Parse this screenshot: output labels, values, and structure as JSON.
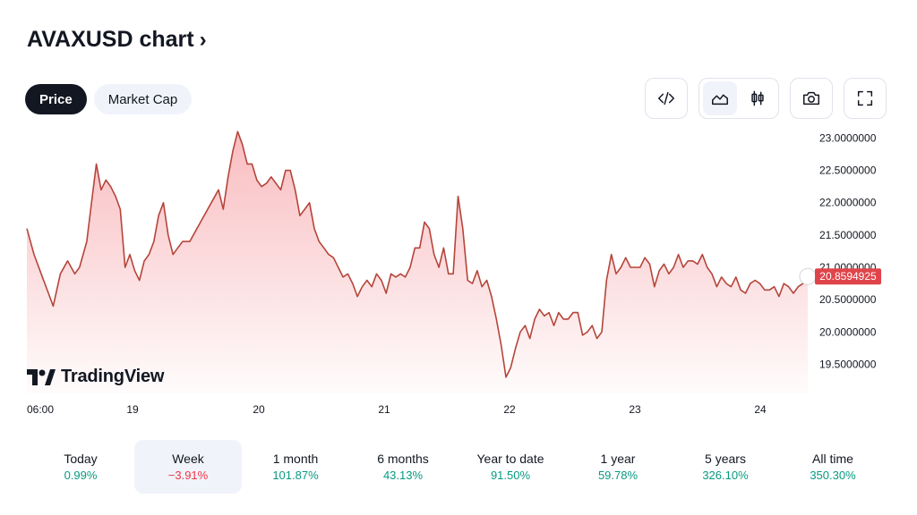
{
  "header": {
    "title": "AVAXUSD chart",
    "chevron": "›"
  },
  "tabs": [
    {
      "label": "Price",
      "active": true
    },
    {
      "label": "Market Cap",
      "active": false
    }
  ],
  "toolbar": {
    "embed_icon": "code-icon",
    "area_chart_icon": "area-chart-icon",
    "candle_icon": "candlestick-icon",
    "screenshot_icon": "camera-icon",
    "fullscreen_icon": "fullscreen-icon"
  },
  "branding": {
    "logo_text": "TradingView"
  },
  "colors": {
    "line": "#b5453a",
    "fill_top": "#f7a6ab",
    "label_bg": "#e0444b",
    "positive": "#089981",
    "negative": "#f23645"
  },
  "chart_data": {
    "type": "area",
    "symbol": "AVAXUSD",
    "x_ticks": [
      "06:00",
      "19",
      "20",
      "21",
      "22",
      "23",
      "24"
    ],
    "y_ticks": [
      "23.0000000",
      "22.5000000",
      "22.0000000",
      "21.5000000",
      "21.0000000",
      "20.5000000",
      "20.0000000",
      "19.5000000"
    ],
    "ylim": [
      19.05,
      23.2
    ],
    "last_price": "20.8594925",
    "last_value": 20.8594925,
    "series_points": [
      [
        0.0,
        21.6
      ],
      [
        0.15,
        21.2
      ],
      [
        0.3,
        20.9
      ],
      [
        0.45,
        20.6
      ],
      [
        0.55,
        20.4
      ],
      [
        0.7,
        20.9
      ],
      [
        0.85,
        21.1
      ],
      [
        1.0,
        20.9
      ],
      [
        1.1,
        21.0
      ],
      [
        1.25,
        21.4
      ],
      [
        1.35,
        22.0
      ],
      [
        1.45,
        22.6
      ],
      [
        1.55,
        22.2
      ],
      [
        1.65,
        22.35
      ],
      [
        1.75,
        22.25
      ],
      [
        1.85,
        22.1
      ],
      [
        1.95,
        21.9
      ],
      [
        2.05,
        21.0
      ],
      [
        2.15,
        21.2
      ],
      [
        2.25,
        20.95
      ],
      [
        2.35,
        20.8
      ],
      [
        2.45,
        21.1
      ],
      [
        2.55,
        21.2
      ],
      [
        2.65,
        21.4
      ],
      [
        2.75,
        21.8
      ],
      [
        2.85,
        22.0
      ],
      [
        2.95,
        21.5
      ],
      [
        3.05,
        21.2
      ],
      [
        3.15,
        21.3
      ],
      [
        3.25,
        21.4
      ],
      [
        3.4,
        21.4
      ],
      [
        3.55,
        21.6
      ],
      [
        3.7,
        21.8
      ],
      [
        3.85,
        22.0
      ],
      [
        4.0,
        22.2
      ],
      [
        4.1,
        21.9
      ],
      [
        4.2,
        22.4
      ],
      [
        4.3,
        22.8
      ],
      [
        4.4,
        23.1
      ],
      [
        4.5,
        22.9
      ],
      [
        4.6,
        22.6
      ],
      [
        4.7,
        22.6
      ],
      [
        4.8,
        22.35
      ],
      [
        4.9,
        22.25
      ],
      [
        5.0,
        22.3
      ],
      [
        5.1,
        22.4
      ],
      [
        5.2,
        22.3
      ],
      [
        5.3,
        22.2
      ],
      [
        5.4,
        22.5
      ],
      [
        5.5,
        22.5
      ],
      [
        5.6,
        22.2
      ],
      [
        5.7,
        21.8
      ],
      [
        5.8,
        21.9
      ],
      [
        5.9,
        22.0
      ],
      [
        6.0,
        21.6
      ],
      [
        6.1,
        21.4
      ],
      [
        6.2,
        21.3
      ],
      [
        6.3,
        21.2
      ],
      [
        6.4,
        21.15
      ],
      [
        6.5,
        21.0
      ],
      [
        6.6,
        20.85
      ],
      [
        6.7,
        20.9
      ],
      [
        6.8,
        20.75
      ],
      [
        6.9,
        20.55
      ],
      [
        7.0,
        20.7
      ],
      [
        7.1,
        20.8
      ],
      [
        7.2,
        20.7
      ],
      [
        7.3,
        20.9
      ],
      [
        7.4,
        20.8
      ],
      [
        7.5,
        20.6
      ],
      [
        7.6,
        20.9
      ],
      [
        7.7,
        20.85
      ],
      [
        7.8,
        20.9
      ],
      [
        7.9,
        20.85
      ],
      [
        8.0,
        21.0
      ],
      [
        8.1,
        21.3
      ],
      [
        8.2,
        21.3
      ],
      [
        8.3,
        21.7
      ],
      [
        8.4,
        21.6
      ],
      [
        8.5,
        21.2
      ],
      [
        8.6,
        21.0
      ],
      [
        8.7,
        21.3
      ],
      [
        8.8,
        20.9
      ],
      [
        8.9,
        20.9
      ],
      [
        9.0,
        22.1
      ],
      [
        9.1,
        21.6
      ],
      [
        9.2,
        20.8
      ],
      [
        9.3,
        20.75
      ],
      [
        9.4,
        20.95
      ],
      [
        9.5,
        20.7
      ],
      [
        9.6,
        20.8
      ],
      [
        9.7,
        20.55
      ],
      [
        9.8,
        20.2
      ],
      [
        9.9,
        19.8
      ],
      [
        10.0,
        19.3
      ],
      [
        10.1,
        19.45
      ],
      [
        10.2,
        19.75
      ],
      [
        10.3,
        20.0
      ],
      [
        10.4,
        20.1
      ],
      [
        10.5,
        19.9
      ],
      [
        10.6,
        20.2
      ],
      [
        10.7,
        20.35
      ],
      [
        10.8,
        20.25
      ],
      [
        10.9,
        20.3
      ],
      [
        11.0,
        20.1
      ],
      [
        11.1,
        20.3
      ],
      [
        11.2,
        20.2
      ],
      [
        11.3,
        20.2
      ],
      [
        11.4,
        20.3
      ],
      [
        11.5,
        20.3
      ],
      [
        11.6,
        19.95
      ],
      [
        11.7,
        20.0
      ],
      [
        11.8,
        20.1
      ],
      [
        11.9,
        19.9
      ],
      [
        12.0,
        20.0
      ],
      [
        12.1,
        20.8
      ],
      [
        12.2,
        21.2
      ],
      [
        12.3,
        20.9
      ],
      [
        12.4,
        21.0
      ],
      [
        12.5,
        21.15
      ],
      [
        12.6,
        21.0
      ],
      [
        12.7,
        21.0
      ],
      [
        12.8,
        21.0
      ],
      [
        12.9,
        21.15
      ],
      [
        13.0,
        21.05
      ],
      [
        13.1,
        20.7
      ],
      [
        13.2,
        20.95
      ],
      [
        13.3,
        21.05
      ],
      [
        13.4,
        20.9
      ],
      [
        13.5,
        21.0
      ],
      [
        13.6,
        21.2
      ],
      [
        13.7,
        21.0
      ],
      [
        13.8,
        21.1
      ],
      [
        13.9,
        21.1
      ],
      [
        14.0,
        21.05
      ],
      [
        14.1,
        21.2
      ],
      [
        14.2,
        21.0
      ],
      [
        14.3,
        20.9
      ],
      [
        14.4,
        20.7
      ],
      [
        14.5,
        20.85
      ],
      [
        14.6,
        20.75
      ],
      [
        14.7,
        20.7
      ],
      [
        14.8,
        20.85
      ],
      [
        14.9,
        20.65
      ],
      [
        15.0,
        20.6
      ],
      [
        15.1,
        20.75
      ],
      [
        15.2,
        20.8
      ],
      [
        15.3,
        20.75
      ],
      [
        15.4,
        20.65
      ],
      [
        15.5,
        20.65
      ],
      [
        15.6,
        20.7
      ],
      [
        15.7,
        20.55
      ],
      [
        15.8,
        20.75
      ],
      [
        15.9,
        20.7
      ],
      [
        16.0,
        20.6
      ],
      [
        16.1,
        20.7
      ],
      [
        16.2,
        20.75
      ],
      [
        16.3,
        20.86
      ]
    ]
  },
  "periods": [
    {
      "label": "Today",
      "value": "0.99%",
      "trend": "pos",
      "active": false
    },
    {
      "label": "Week",
      "value": "−3.91%",
      "trend": "neg",
      "active": true
    },
    {
      "label": "1 month",
      "value": "101.87%",
      "trend": "pos",
      "active": false
    },
    {
      "label": "6 months",
      "value": "43.13%",
      "trend": "pos",
      "active": false
    },
    {
      "label": "Year to date",
      "value": "91.50%",
      "trend": "pos",
      "active": false
    },
    {
      "label": "1 year",
      "value": "59.78%",
      "trend": "pos",
      "active": false
    },
    {
      "label": "5 years",
      "value": "326.10%",
      "trend": "pos",
      "active": false
    },
    {
      "label": "All time",
      "value": "350.30%",
      "trend": "pos",
      "active": false
    }
  ]
}
